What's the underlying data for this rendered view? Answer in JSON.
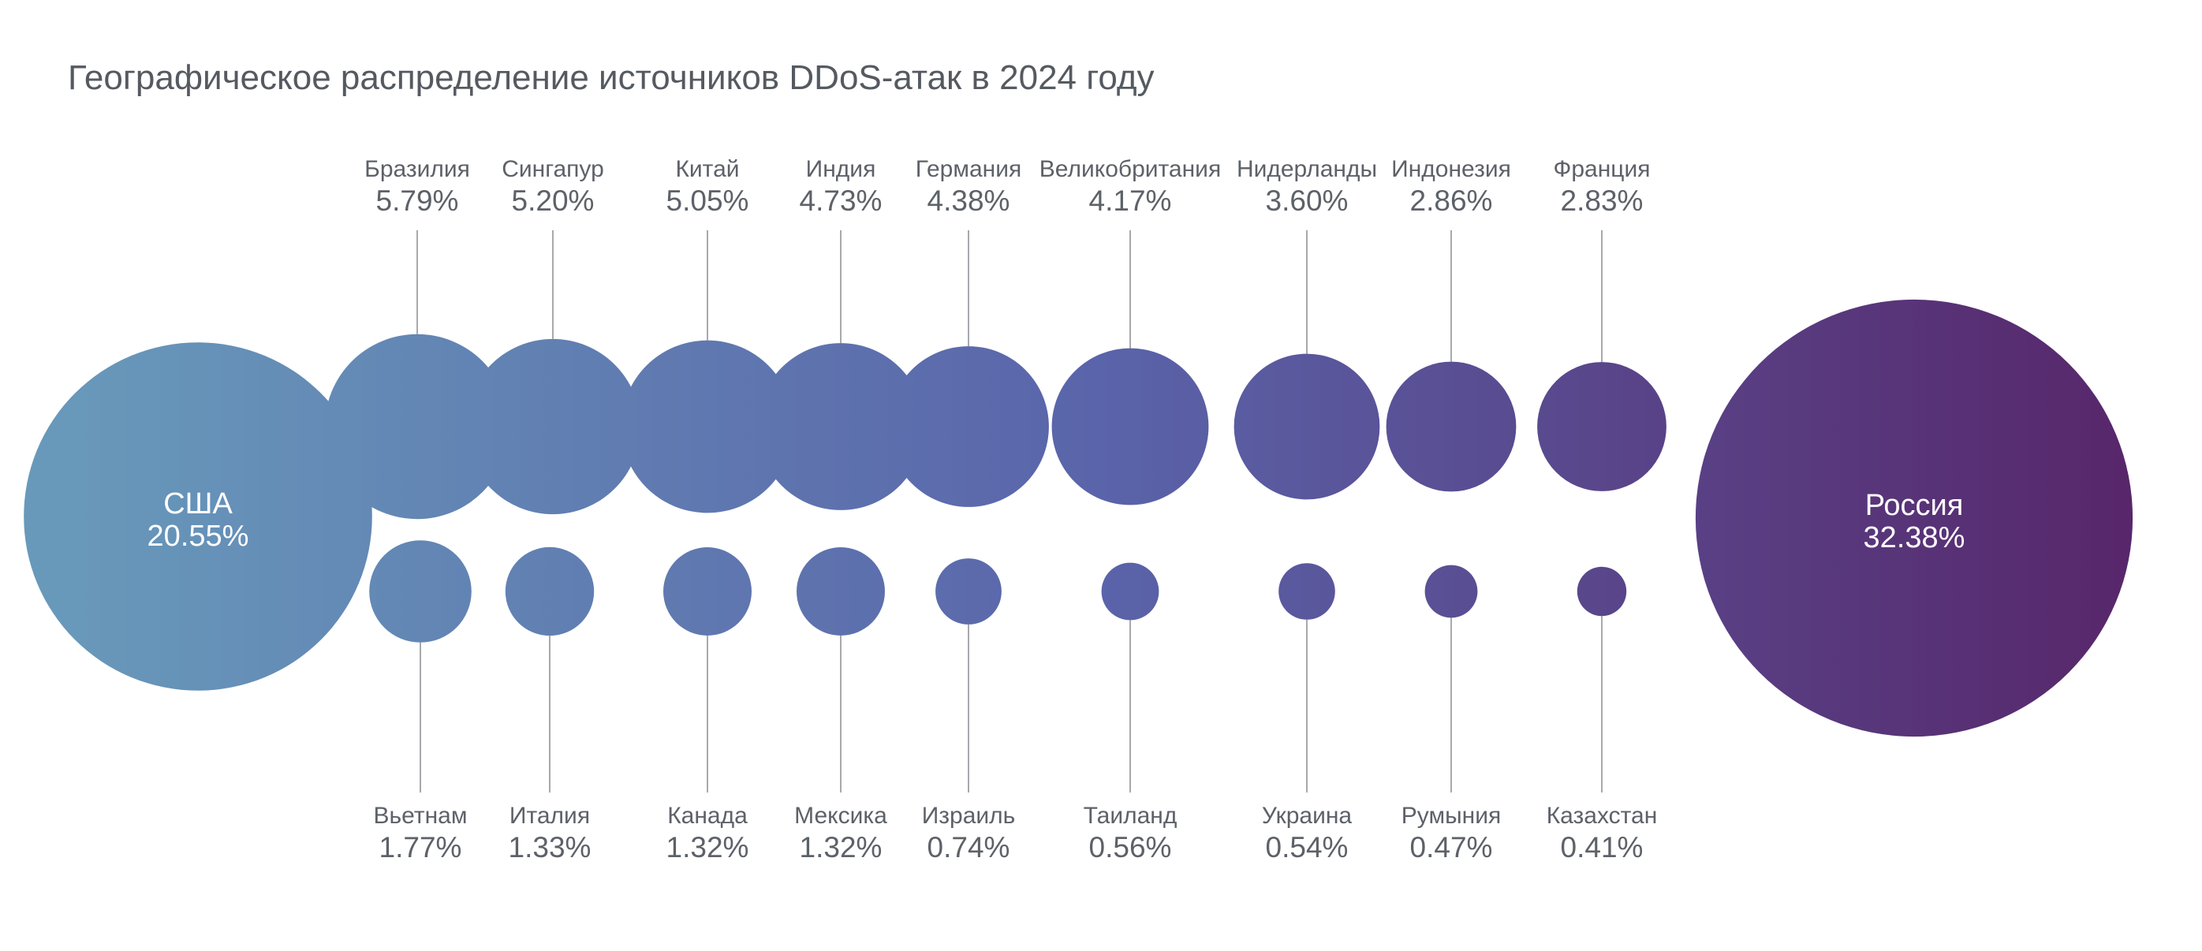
{
  "title": "Географическое распределение источников DDoS-атак в 2024 году",
  "colors": {
    "gradient_start": "#6899ba",
    "gradient_mid": "#5a64aa",
    "gradient_end": "#58266a",
    "text": "#5d6168",
    "leader_line": "#a7a9ad"
  },
  "chart_data": {
    "type": "bubble",
    "unit": "%",
    "large_bubbles": [
      {
        "country": "США",
        "label": "20.55%",
        "value": 20.55
      },
      {
        "country": "Россия",
        "label": "32.38%",
        "value": 32.38
      }
    ],
    "top_row": [
      {
        "country": "Бразилия",
        "label": "5.79%",
        "value": 5.79
      },
      {
        "country": "Сингапур",
        "label": "5.20%",
        "value": 5.2
      },
      {
        "country": "Китай",
        "label": "5.05%",
        "value": 5.05
      },
      {
        "country": "Индия",
        "label": "4.73%",
        "value": 4.73
      },
      {
        "country": "Германия",
        "label": "4.38%",
        "value": 4.38
      },
      {
        "country": "Великобритания",
        "label": "4.17%",
        "value": 4.17
      },
      {
        "country": "Нидерланды",
        "label": "3.60%",
        "value": 3.6
      },
      {
        "country": "Индонезия",
        "label": "2.86%",
        "value": 2.86
      },
      {
        "country": "Франция",
        "label": "2.83%",
        "value": 2.83
      }
    ],
    "bottom_row": [
      {
        "country": "Вьетнам",
        "label": "1.77%",
        "value": 1.77
      },
      {
        "country": "Италия",
        "label": "1.33%",
        "value": 1.33
      },
      {
        "country": "Канада",
        "label": "1.32%",
        "value": 1.32
      },
      {
        "country": "Мексика",
        "label": "1.32%",
        "value": 1.32
      },
      {
        "country": "Израиль",
        "label": "0.74%",
        "value": 0.74
      },
      {
        "country": "Таиланд",
        "label": "0.56%",
        "value": 0.56
      },
      {
        "country": "Украина",
        "label": "0.54%",
        "value": 0.54
      },
      {
        "country": "Румыния",
        "label": "0.47%",
        "value": 0.47
      },
      {
        "country": "Казахстан",
        "label": "0.41%",
        "value": 0.41
      }
    ]
  }
}
